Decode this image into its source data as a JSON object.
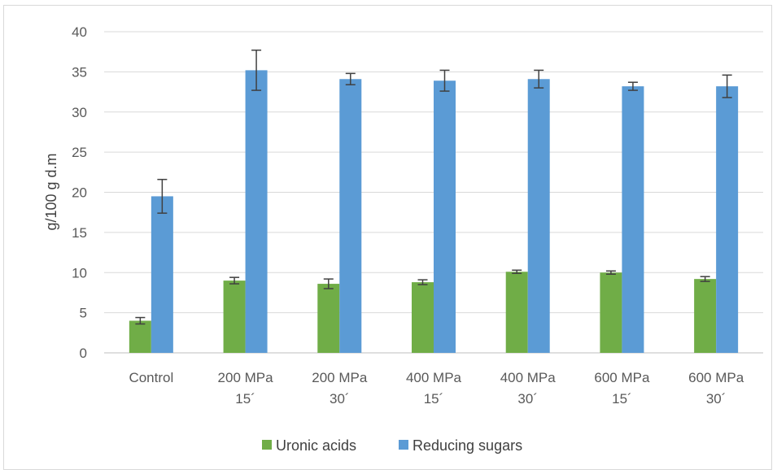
{
  "chart_data": {
    "type": "bar",
    "title": "",
    "xlabel": "",
    "ylabel": "g/100 g d.m",
    "ylim": [
      0,
      40
    ],
    "yticks": [
      0,
      5,
      10,
      15,
      20,
      25,
      30,
      35,
      40
    ],
    "grid": true,
    "legend_position": "bottom",
    "categories": [
      [
        "Control"
      ],
      [
        "200 MPa",
        "15´"
      ],
      [
        "200 MPa",
        "30´"
      ],
      [
        "400 MPa",
        "15´"
      ],
      [
        "400 MPa",
        "30´"
      ],
      [
        "600 MPa",
        "15´"
      ],
      [
        "600 MPa",
        "30´"
      ]
    ],
    "series": [
      {
        "name": "Uronic acids",
        "color": "#70ad47",
        "values": [
          4.0,
          9.0,
          8.6,
          8.8,
          10.1,
          10.0,
          9.2
        ],
        "errors": [
          0.4,
          0.4,
          0.6,
          0.3,
          0.2,
          0.2,
          0.3
        ]
      },
      {
        "name": "Reducing sugars",
        "color": "#5b9bd5",
        "values": [
          19.5,
          35.2,
          34.1,
          33.9,
          34.1,
          33.2,
          33.2
        ],
        "errors": [
          2.1,
          2.5,
          0.7,
          1.3,
          1.1,
          0.5,
          1.4
        ]
      }
    ]
  }
}
